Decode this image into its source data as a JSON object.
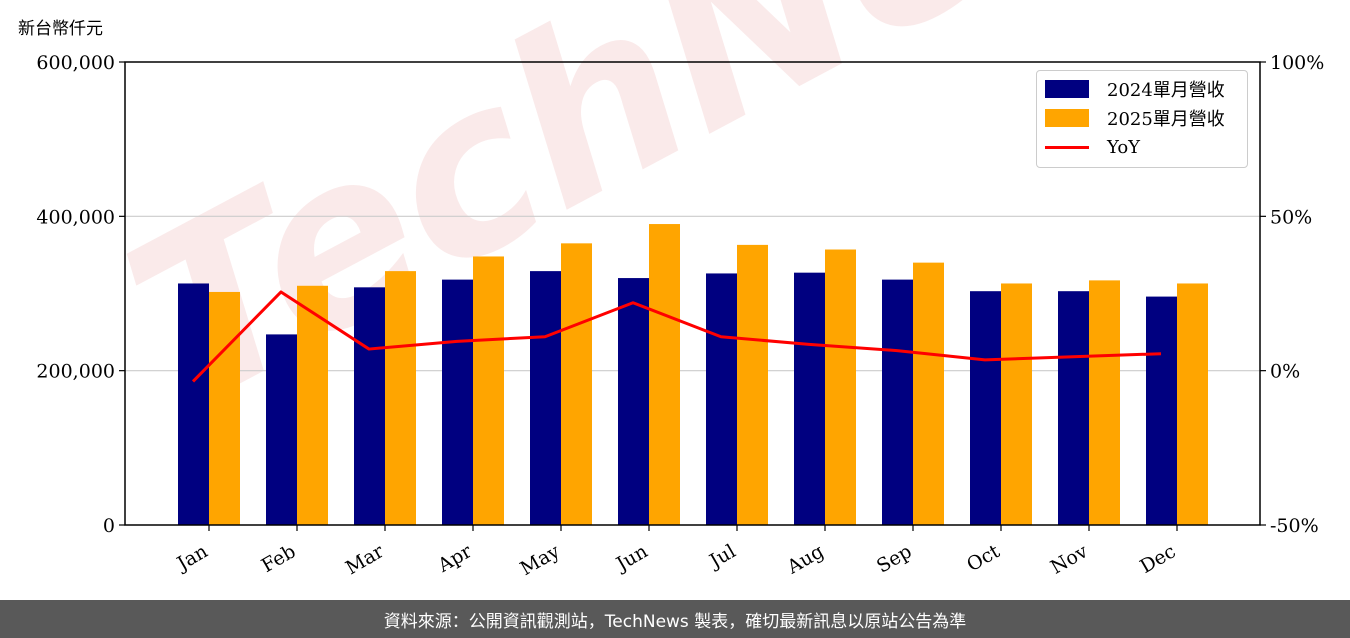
{
  "unit_label": "新台幣仟元",
  "footer": "資料來源：公開資訊觀測站，TechNews 製表，確切最新訊息以原站公告為準",
  "watermark": "TechNews",
  "colors": {
    "series_2024": "#000080",
    "series_2025": "#FFA500",
    "yoy": "#FF0000",
    "grid": "#cccccc",
    "footer_bg": "#595959"
  },
  "chart_data": {
    "type": "bar",
    "categories": [
      "Jan",
      "Feb",
      "Mar",
      "Apr",
      "May",
      "Jun",
      "Jul",
      "Aug",
      "Sep",
      "Oct",
      "Nov",
      "Dec"
    ],
    "series": [
      {
        "name": "2024單月營收",
        "type": "bar",
        "axis": "left",
        "values": [
          313000,
          247000,
          308000,
          318000,
          329000,
          320000,
          326000,
          327000,
          318000,
          303000,
          303000,
          296000
        ]
      },
      {
        "name": "2025單月營收",
        "type": "bar",
        "axis": "left",
        "values": [
          302000,
          310000,
          329000,
          348000,
          365000,
          390000,
          363000,
          357000,
          340000,
          313000,
          317000,
          313000
        ]
      },
      {
        "name": "YoY",
        "type": "line",
        "axis": "right",
        "values": [
          -3.5,
          25.5,
          7.0,
          9.5,
          11.0,
          22.0,
          11.0,
          8.5,
          6.5,
          3.5,
          4.5,
          5.5
        ]
      }
    ],
    "ylim_left": [
      0,
      600000
    ],
    "yticks_left": [
      "0",
      "200,000",
      "400,000",
      "600,000"
    ],
    "ylim_right": [
      -50,
      100
    ],
    "yticks_right": [
      "-50%",
      "0%",
      "50%",
      "100%"
    ],
    "grid": true,
    "legend_position": "top-right"
  }
}
